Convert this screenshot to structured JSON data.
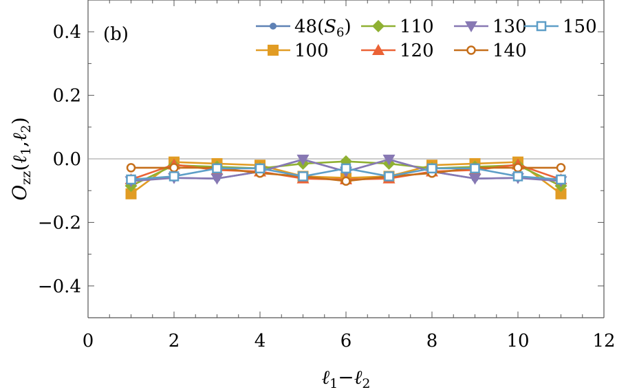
{
  "chart_data": {
    "type": "line",
    "panel_label": "(b)",
    "xlabel": "ℓ1−ℓ2",
    "ylabel": "Ozz(ℓ1,ℓ2)",
    "xlim": [
      0,
      12
    ],
    "ylim": [
      -0.5,
      0.5
    ],
    "xticks": [
      0,
      2,
      4,
      6,
      8,
      10,
      12
    ],
    "yticks": [
      -0.4,
      -0.2,
      0.0,
      0.2,
      0.4
    ],
    "ytick_labels": [
      "−0.4",
      "−0.2",
      "0.0",
      "0.2",
      "0.4"
    ],
    "grid": false,
    "zero_line": true,
    "legend_position": "top-right",
    "x": [
      1,
      2,
      3,
      4,
      5,
      6,
      7,
      8,
      9,
      10,
      11
    ],
    "series": [
      {
        "name": "48(S6)",
        "color": "#5e81b5",
        "marker": "circle",
        "values": [
          -0.065,
          -0.06,
          -0.062,
          -0.04,
          -0.002,
          -0.04,
          -0.002,
          -0.04,
          -0.062,
          -0.06,
          -0.065
        ]
      },
      {
        "name": "100",
        "color": "#e19c24",
        "marker": "square",
        "values": [
          -0.11,
          -0.01,
          -0.015,
          -0.02,
          -0.055,
          -0.06,
          -0.055,
          -0.02,
          -0.015,
          -0.01,
          -0.11
        ]
      },
      {
        "name": "110",
        "color": "#8fb032",
        "marker": "diamond",
        "values": [
          -0.085,
          -0.02,
          -0.025,
          -0.03,
          -0.015,
          -0.008,
          -0.015,
          -0.03,
          -0.025,
          -0.02,
          -0.085
        ]
      },
      {
        "name": "120",
        "color": "#eb6235",
        "marker": "triangle-up",
        "values": [
          -0.065,
          -0.018,
          -0.035,
          -0.04,
          -0.062,
          -0.065,
          -0.062,
          -0.04,
          -0.035,
          -0.018,
          -0.065
        ]
      },
      {
        "name": "130",
        "color": "#8778b3",
        "marker": "triangle-down",
        "values": [
          -0.07,
          -0.06,
          -0.062,
          -0.04,
          -0.002,
          -0.04,
          -0.002,
          -0.04,
          -0.062,
          -0.06,
          -0.07
        ]
      },
      {
        "name": "140",
        "color": "#c56e1a",
        "marker": "circle-open",
        "values": [
          -0.028,
          -0.028,
          -0.028,
          -0.045,
          -0.055,
          -0.07,
          -0.055,
          -0.045,
          -0.028,
          -0.028,
          -0.028
        ]
      },
      {
        "name": "150",
        "color": "#5d9ec7",
        "marker": "square-open",
        "values": [
          -0.065,
          -0.055,
          -0.03,
          -0.03,
          -0.055,
          -0.03,
          -0.055,
          -0.03,
          -0.03,
          -0.055,
          -0.065
        ]
      }
    ]
  }
}
